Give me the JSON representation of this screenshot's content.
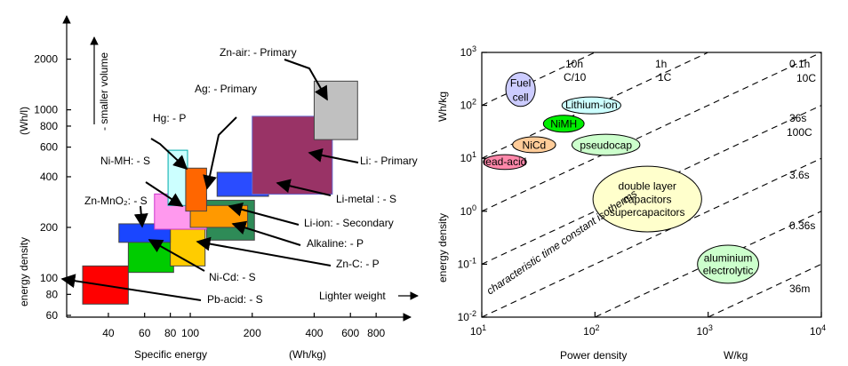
{
  "chart_data": [
    {
      "type": "area",
      "xlabel": "Specific energy",
      "xunit": "(Wh/kg)",
      "ylabel": "energy density",
      "yunit": "(Wh/l)",
      "y_arrow_label": "- smaller volume",
      "x_arrow_label": "Lighter weight",
      "x_scale": "log",
      "y_scale": "log",
      "xlim": [
        30,
        900
      ],
      "ylim": [
        60,
        2600
      ],
      "x_ticks": [
        40,
        60,
        80,
        100,
        200,
        400,
        600,
        800
      ],
      "y_ticks": [
        60,
        80,
        100,
        200,
        400,
        600,
        800,
        1000,
        2000
      ],
      "regions": [
        {
          "name": "Pb-acid",
          "label": "Pb-acid: - S",
          "x": [
            30,
            50
          ],
          "y": [
            70,
            118
          ],
          "color": "#ff0000"
        },
        {
          "name": "Ni-Cd",
          "label": "Ni-Cd: - S",
          "x": [
            50,
            83
          ],
          "y": [
            108,
            200
          ],
          "color": "#00cc00"
        },
        {
          "name": "Zn-C",
          "label": "Zn-C: - P",
          "x": [
            80,
            118
          ],
          "y": [
            118,
            198
          ],
          "color": "#ffcc00"
        },
        {
          "name": "Zn-MnO2",
          "label": "Zn-MnO₂: - S",
          "x": [
            45,
            80
          ],
          "y": [
            163,
            210
          ],
          "color": "#1a46ff"
        },
        {
          "name": "Alkaline",
          "label": "Alkaline: - P",
          "x": [
            120,
            205
          ],
          "y": [
            168,
            290
          ],
          "color": "#2e8b57"
        },
        {
          "name": "Ni-MH",
          "label": "Ni-MH: - S",
          "x": [
            67,
            120
          ],
          "y": [
            195,
            316
          ],
          "color": "#ff99ee"
        },
        {
          "name": "Li-ion",
          "label": "Li-ion: - Secondary",
          "x": [
            100,
            190
          ],
          "y": [
            200,
            270
          ],
          "color": "#ff9900"
        },
        {
          "name": "Hg",
          "label": "Hg: - P",
          "x": [
            78,
            97
          ],
          "y": [
            270,
            575
          ],
          "color": "#ccffff"
        },
        {
          "name": "Ag",
          "label": "Ag: - Primary",
          "x": [
            95,
            120
          ],
          "y": [
            250,
            450
          ],
          "color": "#ff6600"
        },
        {
          "name": "Li-metal",
          "label": "Li-metal : - S",
          "x": [
            135,
            240
          ],
          "y": [
            306,
            425
          ],
          "color": "#2a4cff"
        },
        {
          "name": "Li",
          "label": "Li: - Primary",
          "x": [
            200,
            490
          ],
          "y": [
            315,
            915
          ],
          "color": "#993366"
        },
        {
          "name": "Zn-air",
          "label": "Zn-air: - Primary",
          "x": [
            400,
            650
          ],
          "y": [
            665,
            1480
          ],
          "color": "#c0c0c0"
        }
      ]
    },
    {
      "type": "scatter",
      "xlabel": "Power density",
      "xunit": "W/kg",
      "ylabel": "energy density",
      "yunit": "Wh/kg",
      "x_scale": "log",
      "y_scale": "log",
      "xlim": [
        10,
        10000
      ],
      "ylim": [
        0.01,
        1000
      ],
      "x_ticks": [
        {
          "base": "10",
          "exp": "1"
        },
        {
          "base": "10",
          "exp": "2"
        },
        {
          "base": "10",
          "exp": "3"
        },
        {
          "base": "10",
          "exp": "4"
        }
      ],
      "y_ticks": [
        {
          "base": "10",
          "exp": "-2"
        },
        {
          "base": "10",
          "exp": "-1"
        },
        {
          "base": "10",
          "exp": "0"
        },
        {
          "base": "10",
          "exp": "1"
        },
        {
          "base": "10",
          "exp": "2"
        },
        {
          "base": "10",
          "exp": "3"
        }
      ],
      "isotherm_caption": "characteristic  time constant isotherms",
      "isotherms": [
        {
          "label": "10h",
          "sublabel": "C/10",
          "hours": 10
        },
        {
          "label": "1h",
          "sublabel": "1C",
          "hours": 1
        },
        {
          "label": "0.1h",
          "sublabel": "10C",
          "hours": 0.1
        },
        {
          "label": "36s",
          "sublabel": "100C",
          "hours": 0.01
        },
        {
          "label": "3.6s",
          "sublabel": "",
          "hours": 0.001
        },
        {
          "label": "0.36s",
          "sublabel": "",
          "hours": 0.0001
        },
        {
          "label": "36m",
          "sublabel": "",
          "hours": 1e-05
        }
      ],
      "bubbles": [
        {
          "name": "Fuel cell",
          "lines": [
            "Fuel",
            "cell"
          ],
          "px": 22,
          "wh": 200,
          "rx": 0.13,
          "ry": 0.32,
          "color": "#ccccff",
          "size": 14
        },
        {
          "name": "Lithium-ion",
          "lines": [
            "Lithium-ion"
          ],
          "px": 93,
          "wh": 100,
          "rx": 0.26,
          "ry": 0.16,
          "color": "#ccffff",
          "size": 10
        },
        {
          "name": "NiMH",
          "lines": [
            "NiMH"
          ],
          "px": 53,
          "wh": 45,
          "rx": 0.18,
          "ry": 0.16,
          "color": "#00ee00",
          "size": 12
        },
        {
          "name": "NiCd",
          "lines": [
            "NiCd"
          ],
          "px": 29,
          "wh": 18,
          "rx": 0.19,
          "ry": 0.15,
          "color": "#ffcc99",
          "size": 13
        },
        {
          "name": "pseudocap",
          "lines": [
            "pseudocap"
          ],
          "px": 125,
          "wh": 18,
          "rx": 0.3,
          "ry": 0.2,
          "color": "#ccffcc",
          "size": 12
        },
        {
          "name": "lead-acid",
          "lines": [
            "lead-acid"
          ],
          "px": 16,
          "wh": 8.5,
          "rx": 0.19,
          "ry": 0.14,
          "color": "#ff88aa",
          "size": 10
        },
        {
          "name": "double layer capacitors",
          "lines": [
            "double layer",
            "capacitors",
            "supercapacitors"
          ],
          "px": 290,
          "wh": 1.7,
          "rx": 0.48,
          "ry": 0.62,
          "color": "#ffffcc",
          "size": 13
        },
        {
          "name": "aluminium electrolytic",
          "lines": [
            "aluminium",
            "electrolytic"
          ],
          "px": 1500,
          "wh": 0.1,
          "rx": 0.27,
          "ry": 0.36,
          "color": "#ccffcc",
          "size": 12
        }
      ]
    }
  ]
}
